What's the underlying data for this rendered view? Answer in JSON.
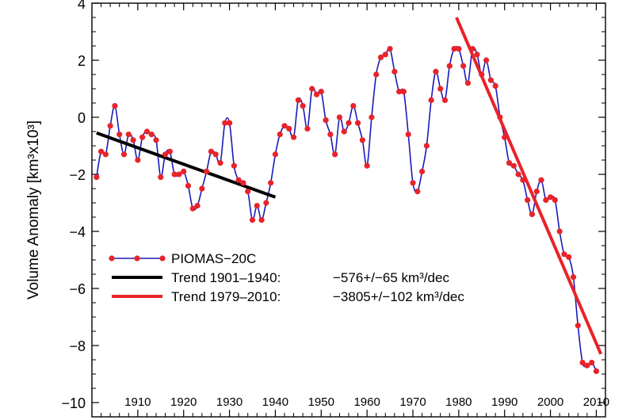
{
  "chart_data": {
    "type": "line",
    "title": "",
    "xlabel": "",
    "ylabel": "Volume Anomaly [km³x10³]",
    "xlim": [
      1900,
      2012
    ],
    "ylim": [
      -10.5,
      4
    ],
    "xticks": [
      1910,
      1920,
      1930,
      1940,
      1950,
      1960,
      1970,
      1980,
      1990,
      2000,
      2010
    ],
    "yticks": [
      -10,
      -8,
      -6,
      -4,
      -2,
      0,
      2,
      4
    ],
    "grid": false,
    "legend_position": "lower-left",
    "series": [
      {
        "name": "PIOMAS−20C",
        "color": "#1a1ab8",
        "marker_color": "#e8232a",
        "x": [
          1901.0,
          1902.0,
          1903.0,
          1904.0,
          1905.0,
          1906.0,
          1907.0,
          1908.0,
          1909.0,
          1910.0,
          1911.0,
          1912.0,
          1913.0,
          1914.0,
          1915.0,
          1916.0,
          1917.0,
          1918.0,
          1919.0,
          1920.0,
          1921.0,
          1922.0,
          1923.0,
          1924.0,
          1925.0,
          1926.0,
          1927.0,
          1928.0,
          1929.0,
          1930.0,
          1931.0,
          1932.0,
          1933.0,
          1934.0,
          1935.0,
          1936.0,
          1937.0,
          1938.0,
          1939.0,
          1940.0,
          1941.0,
          1942.0,
          1943.0,
          1944.0,
          1945.0,
          1946.0,
          1947.0,
          1948.0,
          1949.0,
          1950.0,
          1951.0,
          1952.0,
          1953.0,
          1954.0,
          1955.0,
          1956.0,
          1957.0,
          1958.0,
          1959.0,
          1960.0,
          1961.0,
          1962.0,
          1963.0,
          1964.0,
          1965.0,
          1966.0,
          1967.0,
          1968.0,
          1969.0,
          1970.0,
          1971.0,
          1972.0,
          1973.0,
          1974.0,
          1975.0,
          1976.0,
          1977.0,
          1978.0,
          1979.0,
          1980.0,
          1981.0,
          1982.0,
          1983.0,
          1984.0,
          1985.0,
          1986.0,
          1987.0,
          1988.0,
          1989.0,
          1990.0,
          1991.0,
          1992.0,
          1993.0,
          1994.0,
          1995.0,
          1996.0,
          1997.0,
          1998.0,
          1999.0,
          2000.0,
          2001.0,
          2002.0,
          2003.0,
          2004.0,
          2005.0,
          2006.0,
          2007.0,
          2008.0,
          2009.0,
          2010.0
        ],
        "values": [
          -2.1,
          -1.2,
          -1.3,
          -0.3,
          0.4,
          -0.6,
          -1.3,
          -0.6,
          -0.8,
          -1.5,
          -0.7,
          -0.5,
          -0.6,
          -0.8,
          -2.1,
          -1.3,
          -1.2,
          -2.0,
          -2.0,
          -1.9,
          -2.4,
          -3.2,
          -3.1,
          -2.5,
          -1.9,
          -1.2,
          -1.3,
          -1.6,
          -0.2,
          -0.2,
          -1.7,
          -2.2,
          -2.3,
          -2.6,
          -3.6,
          -3.1,
          -3.6,
          -3.0,
          -2.3,
          -1.3,
          -0.6,
          -0.3,
          -0.4,
          -0.7,
          0.6,
          0.4,
          -0.4,
          1.0,
          0.8,
          0.9,
          -0.1,
          -0.6,
          -1.3,
          0.0,
          -0.5,
          -0.2,
          0.4,
          -0.2,
          -0.8,
          -1.7,
          0.0,
          1.5,
          2.1,
          2.2,
          2.4,
          1.6,
          0.9,
          0.9,
          -0.6,
          -2.3,
          -2.6,
          -1.9,
          -1.0,
          0.6,
          1.6,
          1.0,
          0.6,
          1.8,
          2.4,
          2.4,
          1.8,
          1.2,
          2.4,
          2.2,
          1.5,
          2.0,
          1.3,
          1.1,
          0.0,
          -0.7,
          -1.6,
          -1.7,
          -2.0,
          -2.2,
          -2.9,
          -3.4,
          -2.6,
          -2.2,
          -2.9,
          -2.8,
          -2.9,
          -4.0,
          -4.8,
          -4.9,
          -5.6,
          -7.3,
          -8.6,
          -8.7,
          -8.6,
          -8.9
        ]
      },
      {
        "name": "Trend 1901–1940:",
        "legend_value": "−576+/−65 km³/dec",
        "color": "#000000",
        "x": [
          1901,
          1940
        ],
        "values": [
          -0.55,
          -2.8
        ]
      },
      {
        "name": "Trend 1979–2010:",
        "legend_value": "−3805+/−102 km³/dec",
        "color": "#e8232a",
        "x": [
          1979.5,
          2011
        ],
        "values": [
          3.5,
          -8.3
        ]
      }
    ]
  }
}
